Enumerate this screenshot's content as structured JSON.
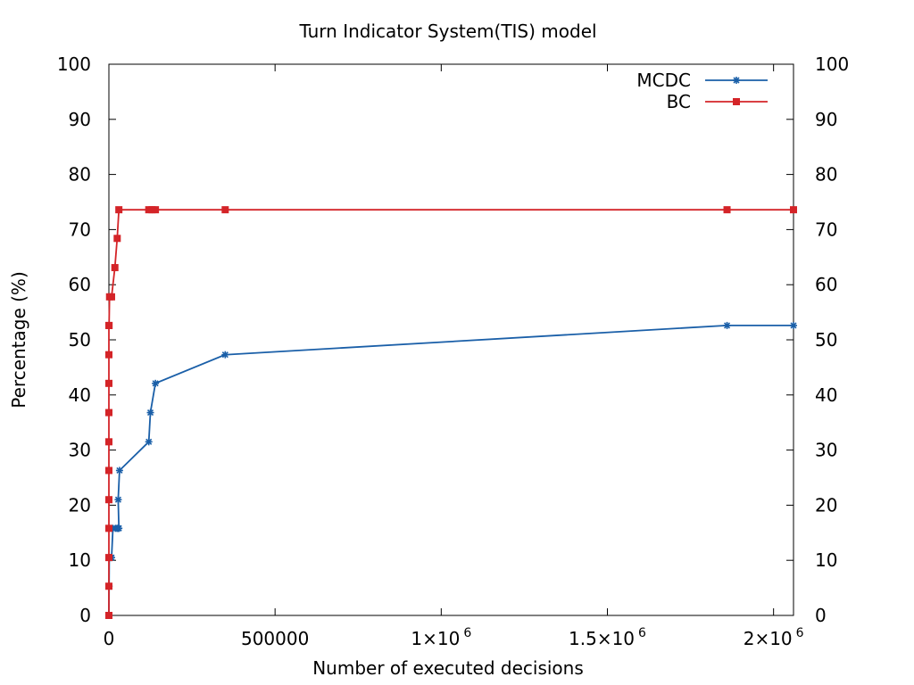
{
  "chart_data": {
    "type": "line",
    "title": "Turn Indicator System(TIS) model",
    "xlabel": "Number of executed decisions",
    "ylabel": "Percentage (%)",
    "xlim": [
      0,
      2060000
    ],
    "ylim": [
      0,
      100
    ],
    "x_ticks": [
      {
        "value": 0,
        "label": "0",
        "exp": ""
      },
      {
        "value": 500000,
        "label": "500000",
        "exp": ""
      },
      {
        "value": 1000000,
        "label": "1×10",
        "exp": "6"
      },
      {
        "value": 1500000,
        "label": "1.5×10",
        "exp": "6"
      },
      {
        "value": 2000000,
        "label": "2×10",
        "exp": "6"
      }
    ],
    "y_ticks": [
      0,
      10,
      20,
      30,
      40,
      50,
      60,
      70,
      80,
      90,
      100
    ],
    "y2_ticks": [
      0,
      10,
      20,
      30,
      40,
      50,
      60,
      70,
      80,
      90,
      100
    ],
    "grid": false,
    "legend_position": "top-right",
    "series": [
      {
        "name": "MCDC",
        "color": "#1a5fa8",
        "marker": "star",
        "x": [
          0,
          500,
          1000,
          2000,
          4000,
          8000,
          12000,
          20000,
          25000,
          28000,
          30000,
          28000,
          32000,
          120000,
          125000,
          140000,
          350000,
          1860000,
          2060000
        ],
        "y": [
          0,
          5.3,
          10.5,
          10.5,
          10.5,
          10.5,
          15.8,
          15.8,
          15.8,
          15.8,
          15.8,
          21.0,
          26.3,
          31.5,
          36.8,
          42.1,
          47.3,
          52.6,
          52.6
        ]
      },
      {
        "name": "BC",
        "color": "#d42428",
        "marker": "square",
        "x": [
          0,
          0,
          0,
          0,
          0,
          0,
          0,
          0,
          0,
          0,
          0,
          500,
          2000,
          8000,
          18000,
          25000,
          30000,
          120000,
          130000,
          140000,
          350000,
          1860000,
          2060000
        ],
        "y": [
          0,
          5.3,
          10.5,
          15.8,
          21.0,
          26.3,
          31.5,
          36.8,
          42.1,
          47.3,
          52.6,
          52.6,
          57.8,
          57.8,
          63.1,
          68.4,
          73.6,
          73.6,
          73.6,
          73.6,
          73.6,
          73.6,
          73.6
        ]
      }
    ]
  }
}
